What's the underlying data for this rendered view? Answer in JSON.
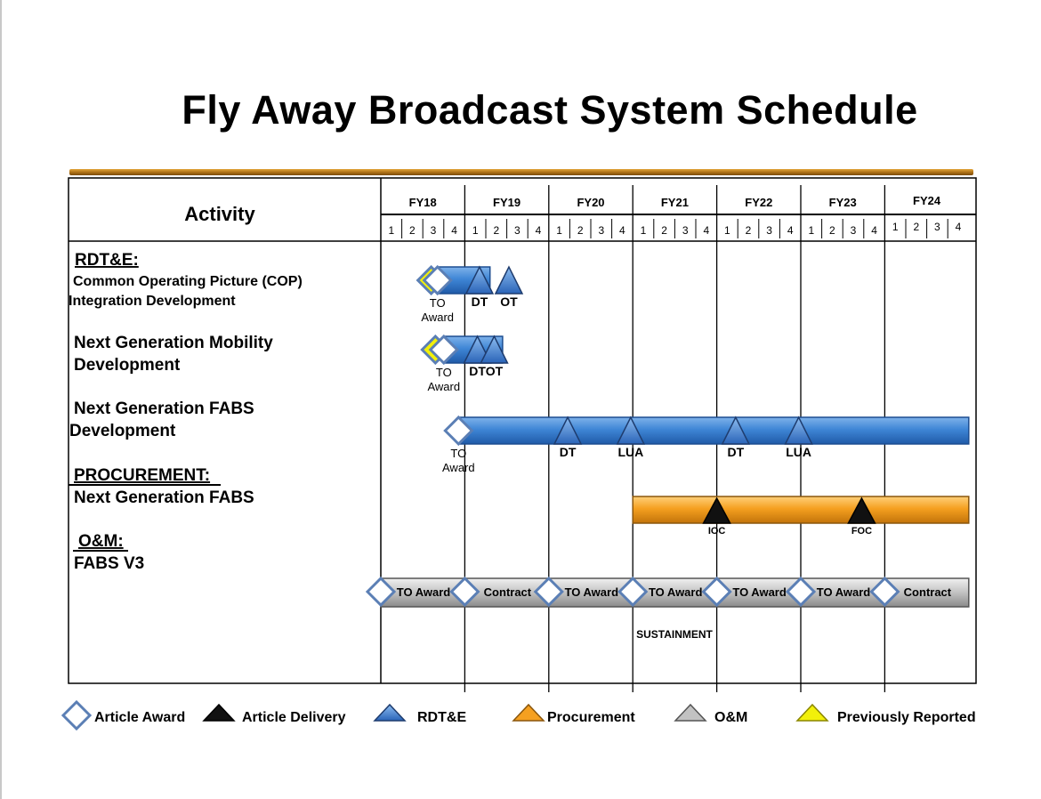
{
  "title": "Fly Away Broadcast System Schedule",
  "colors": {
    "rdte_bar": "#3f86d6",
    "procurement_bar": "#f5a020",
    "om_bar": "#c2c2c2",
    "diamond_stroke": "#5b7fb5",
    "previously_reported": "#f2f00a",
    "delivery": "#111111",
    "gold_rule": "#c4861d"
  },
  "activity_header": "Activity",
  "fiscal_years": [
    "FY18",
    "FY19",
    "FY20",
    "FY21",
    "FY22",
    "FY23",
    "FY24"
  ],
  "quarters": [
    "1",
    "2",
    "3",
    "4"
  ],
  "rows": [
    {
      "section": "RDT&E:",
      "lines": [
        "Common Operating Picture (COP)",
        "Integration Development"
      ]
    },
    {
      "lines": [
        "Next Generation Mobility",
        "Development"
      ]
    },
    {
      "lines": [
        "Next Generation FABS",
        "Development"
      ]
    },
    {
      "section": "PROCUREMENT:",
      "lines": [
        "Next Generation FABS"
      ]
    },
    {
      "section": "O&M:",
      "lines": [
        "FABS V3"
      ]
    }
  ],
  "bars": [
    {
      "type": "rdte",
      "start": 2.7,
      "end": 5.2,
      "award": {
        "q": 2.7,
        "label": [
          "TO",
          "Award"
        ]
      },
      "prev_reported": 2.4,
      "milestones": [
        {
          "q": 4.7,
          "label": "DT"
        },
        {
          "q": 6.1,
          "label": "OT"
        }
      ]
    },
    {
      "type": "rdte",
      "start": 3.0,
      "end": 5.8,
      "award": {
        "q": 3.0,
        "label": [
          "TO",
          "Award"
        ]
      },
      "prev_reported": 2.6,
      "milestones": [
        {
          "q": 4.6,
          "label": "DT"
        },
        {
          "q": 5.4,
          "label": "OT"
        }
      ]
    },
    {
      "type": "rdte",
      "start": 3.7,
      "end": 28.0,
      "award": {
        "q": 3.7,
        "label": [
          "TO",
          "Award"
        ]
      },
      "milestones": [
        {
          "q": 8.9,
          "label": "DT"
        },
        {
          "q": 11.9,
          "label": "LUA"
        },
        {
          "q": 16.9,
          "label": "DT"
        },
        {
          "q": 19.9,
          "label": "LUA"
        }
      ]
    },
    {
      "type": "procurement",
      "start": 12.0,
      "end": 28.0,
      "milestones": [
        {
          "q": 16.0,
          "label": "IOC"
        },
        {
          "q": 22.9,
          "label": "FOC"
        }
      ]
    }
  ],
  "om_bar": {
    "start": 0.0,
    "end": 28.0,
    "events": [
      {
        "q": 0.0,
        "label": "TO Award"
      },
      {
        "q": 4.0,
        "label": "Contract"
      },
      {
        "q": 8.0,
        "label": "TO Award"
      },
      {
        "q": 12.0,
        "label": "TO Award"
      },
      {
        "q": 16.0,
        "label": "TO Award"
      },
      {
        "q": 20.0,
        "label": "TO Award"
      },
      {
        "q": 24.0,
        "label": "Contract"
      }
    ],
    "note": "SUSTAINMENT"
  },
  "legend": [
    {
      "icon": "diamond",
      "label": "Article Award"
    },
    {
      "icon": "triangle-black",
      "label": "Article Delivery"
    },
    {
      "icon": "triangle-blue",
      "label": "RDT&E"
    },
    {
      "icon": "triangle-orange",
      "label": "Procurement"
    },
    {
      "icon": "triangle-gray",
      "label": "O&M"
    },
    {
      "icon": "triangle-yellow",
      "label": "Previously Reported"
    }
  ]
}
